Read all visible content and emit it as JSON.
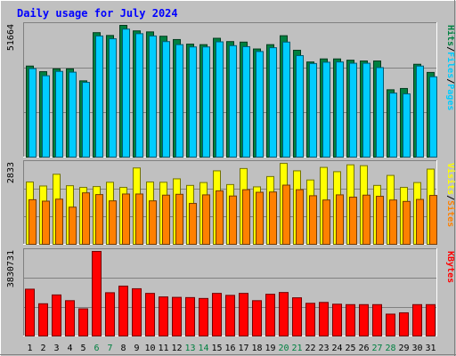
{
  "chart_data": [
    {
      "type": "bar",
      "title": "Daily usage for July 2024",
      "y_max_label": "51664",
      "ylim": [
        0,
        51664
      ],
      "legend": [
        {
          "text": "Pages",
          "color": "#00ccff"
        },
        {
          "text": "Files",
          "color": "#00ccff"
        },
        {
          "text": "Hits",
          "color": "#008040"
        }
      ],
      "legend_separator": "/",
      "categories": [
        "1",
        "2",
        "3",
        "4",
        "5",
        "6",
        "7",
        "8",
        "9",
        "10",
        "11",
        "12",
        "13",
        "14",
        "15",
        "16",
        "17",
        "18",
        "19",
        "20",
        "21",
        "22",
        "23",
        "24",
        "25",
        "26",
        "27",
        "28",
        "29",
        "30",
        "31"
      ],
      "weekend_days": [
        "6",
        "7",
        "13",
        "14",
        "20",
        "21",
        "27",
        "28"
      ],
      "series": [
        {
          "name": "Hits",
          "color": "#008040",
          "values": [
            35700,
            33500,
            34600,
            34600,
            29900,
            48800,
            47700,
            51664,
            49500,
            49100,
            47400,
            46100,
            44300,
            44100,
            46600,
            45300,
            45100,
            42400,
            44100,
            47600,
            41900,
            37300,
            38500,
            38500,
            38000,
            37700,
            37700,
            26400,
            26900,
            36400,
            33200
          ]
        },
        {
          "name": "Files",
          "color": "#00ccff",
          "values": [
            34700,
            31900,
            33600,
            33300,
            29300,
            47500,
            46400,
            50200,
            48400,
            47500,
            45300,
            44100,
            43200,
            43200,
            45200,
            43700,
            43300,
            41400,
            42900,
            45100,
            39800,
            36700,
            37200,
            37300,
            36800,
            36800,
            35100,
            25100,
            24800,
            35700,
            31500
          ]
        }
      ]
    },
    {
      "type": "bar",
      "y_max_label": "2833",
      "ylim": [
        0,
        2833
      ],
      "legend": [
        {
          "text": "Sites",
          "color": "#ff8000"
        },
        {
          "text": "Visits",
          "color": "#ffff00"
        }
      ],
      "legend_separator": "/",
      "categories": [
        "1",
        "2",
        "3",
        "4",
        "5",
        "6",
        "7",
        "8",
        "9",
        "10",
        "11",
        "12",
        "13",
        "14",
        "15",
        "16",
        "17",
        "18",
        "19",
        "20",
        "21",
        "22",
        "23",
        "24",
        "25",
        "26",
        "27",
        "28",
        "29",
        "30",
        "31"
      ],
      "series": [
        {
          "name": "Visits",
          "color": "#ffff00",
          "values": [
            2180,
            2040,
            2450,
            2050,
            1990,
            2020,
            2170,
            1990,
            2670,
            2180,
            2170,
            2290,
            2060,
            2160,
            2570,
            2090,
            2650,
            2010,
            2370,
            2830,
            2570,
            2250,
            2690,
            2540,
            2780,
            2750,
            2060,
            2410,
            1990,
            2160,
            2630
          ]
        },
        {
          "name": "Sites",
          "color": "#ff8000",
          "values": [
            1560,
            1510,
            1580,
            1300,
            1800,
            1740,
            1520,
            1760,
            1760,
            1520,
            1720,
            1750,
            1430,
            1730,
            1870,
            1690,
            1910,
            1820,
            1830,
            2070,
            1910,
            1700,
            1550,
            1730,
            1650,
            1720,
            1680,
            1550,
            1500,
            1570,
            1710
          ]
        }
      ]
    },
    {
      "type": "bar",
      "y_max_label": "3830731",
      "ylim": [
        0,
        3830731
      ],
      "legend": [
        {
          "text": "KBytes",
          "color": "#ff0000"
        }
      ],
      "categories": [
        "1",
        "2",
        "3",
        "4",
        "5",
        "6",
        "7",
        "8",
        "9",
        "10",
        "11",
        "12",
        "13",
        "14",
        "15",
        "16",
        "17",
        "18",
        "19",
        "20",
        "21",
        "22",
        "23",
        "24",
        "25",
        "26",
        "27",
        "28",
        "29",
        "30",
        "31"
      ],
      "series": [
        {
          "name": "KBytes",
          "color": "#ff0000",
          "values": [
            2120000,
            1460000,
            1860000,
            1600000,
            1230000,
            3830731,
            1960000,
            2260000,
            2140000,
            1930000,
            1770000,
            1750000,
            1740000,
            1700000,
            1930000,
            1840000,
            1930000,
            1600000,
            1890000,
            1970000,
            1730000,
            1480000,
            1520000,
            1440000,
            1420000,
            1420000,
            1420000,
            990000,
            1050000,
            1420000,
            1420000
          ]
        }
      ]
    }
  ]
}
